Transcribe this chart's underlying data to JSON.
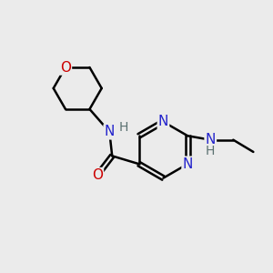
{
  "background_color": "#ebebeb",
  "atom_colors": {
    "N": "#2222cc",
    "O": "#cc0000",
    "C": "#000000",
    "H": "#5a7070"
  },
  "bond_color": "#000000",
  "bond_width": 1.8,
  "font_size_atom": 11,
  "figsize": [
    3.0,
    3.0
  ],
  "dpi": 100
}
